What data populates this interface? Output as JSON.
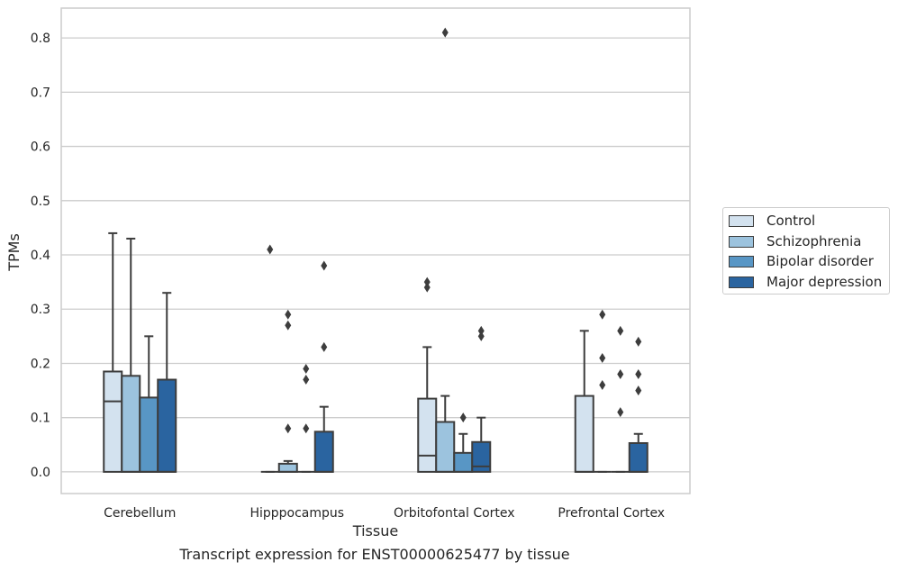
{
  "caption": "Transcript expression for ENST00000625477 by tissue",
  "chart_data": {
    "type": "boxplot",
    "xlabel": "Tissue",
    "ylabel": "TPMs",
    "ylim": [
      -0.04,
      0.855
    ],
    "yticks": [
      "0.0",
      "0.1",
      "0.2",
      "0.3",
      "0.4",
      "0.5",
      "0.6",
      "0.7",
      "0.8"
    ],
    "grid": true,
    "legend_position": "right",
    "categories": [
      "Cerebellum",
      "Hipppocampus",
      "Orbitofontal Cortex",
      "Prefrontal Cortex"
    ],
    "series": [
      {
        "name": "Control",
        "color": "#d3e2ef",
        "boxes": [
          {
            "q1": 0,
            "median": 0.13,
            "q3": 0.185,
            "whisker_low": 0,
            "whisker_high": 0.44,
            "outliers": []
          },
          {
            "q1": 0,
            "median": 0,
            "q3": 0,
            "whisker_low": 0,
            "whisker_high": 0,
            "outliers": [
              0.41
            ]
          },
          {
            "q1": 0,
            "median": 0.03,
            "q3": 0.135,
            "whisker_low": 0,
            "whisker_high": 0.23,
            "outliers": [
              0.34,
              0.35
            ]
          },
          {
            "q1": 0,
            "median": 0,
            "q3": 0.14,
            "whisker_low": 0,
            "whisker_high": 0.26,
            "outliers": []
          }
        ]
      },
      {
        "name": "Schizophrenia",
        "color": "#9cc3de",
        "boxes": [
          {
            "q1": 0,
            "median": 0,
            "q3": 0.177,
            "whisker_low": 0,
            "whisker_high": 0.43,
            "outliers": []
          },
          {
            "q1": 0,
            "median": 0,
            "q3": 0.015,
            "whisker_low": 0,
            "whisker_high": 0.02,
            "outliers": [
              0.08,
              0.27,
              0.29
            ]
          },
          {
            "q1": 0,
            "median": 0,
            "q3": 0.092,
            "whisker_low": 0,
            "whisker_high": 0.14,
            "outliers": [
              0.81
            ]
          },
          {
            "q1": 0,
            "median": 0,
            "q3": 0,
            "whisker_low": 0,
            "whisker_high": 0,
            "outliers": [
              0.16,
              0.21,
              0.29
            ]
          }
        ]
      },
      {
        "name": "Bipolar disorder",
        "color": "#5896c5",
        "boxes": [
          {
            "q1": 0,
            "median": 0,
            "q3": 0.137,
            "whisker_low": 0,
            "whisker_high": 0.25,
            "outliers": []
          },
          {
            "q1": 0,
            "median": 0,
            "q3": 0,
            "whisker_low": 0,
            "whisker_high": 0,
            "outliers": [
              0.08,
              0.17,
              0.19
            ]
          },
          {
            "q1": 0,
            "median": 0,
            "q3": 0.035,
            "whisker_low": 0,
            "whisker_high": 0.07,
            "outliers": [
              0.1
            ]
          },
          {
            "q1": 0,
            "median": 0,
            "q3": 0,
            "whisker_low": 0,
            "whisker_high": 0,
            "outliers": [
              0.11,
              0.18,
              0.26
            ]
          }
        ]
      },
      {
        "name": "Major depression",
        "color": "#2a64a0",
        "boxes": [
          {
            "q1": 0,
            "median": 0,
            "q3": 0.17,
            "whisker_low": 0,
            "whisker_high": 0.33,
            "outliers": []
          },
          {
            "q1": 0,
            "median": 0,
            "q3": 0.074,
            "whisker_low": 0,
            "whisker_high": 0.12,
            "outliers": [
              0.23,
              0.38
            ]
          },
          {
            "q1": 0,
            "median": 0.01,
            "q3": 0.055,
            "whisker_low": 0,
            "whisker_high": 0.1,
            "outliers": [
              0.25,
              0.26
            ]
          },
          {
            "q1": 0,
            "median": 0,
            "q3": 0.053,
            "whisker_low": 0,
            "whisker_high": 0.07,
            "outliers": [
              0.15,
              0.18,
              0.24
            ]
          }
        ]
      }
    ]
  }
}
